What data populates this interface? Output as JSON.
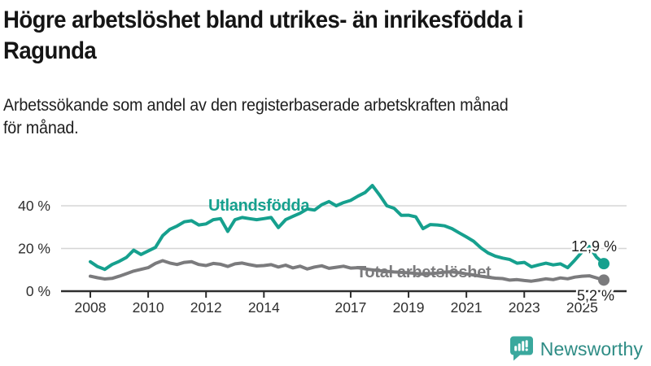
{
  "header": {
    "title": "Högre arbetslöshet bland utrikes- än inrikesfödda i Ragunda",
    "title_lines": [
      "Högre arbetslöshet bland utrikes- än inrikesfödda i",
      "Ragunda"
    ],
    "subtitle_lines": [
      "Arbetssökande som andel av den registerbaserade arbetskraften månad",
      "för månad."
    ]
  },
  "chart_data": {
    "type": "line",
    "title": "Högre arbetslöshet bland utrikes- än inrikesfödda i Ragunda",
    "subtitle": "Arbetssökande som andel av den registerbaserade arbetskraften månad för månad.",
    "x_unit": "year (monthly series)",
    "xlim": [
      2008,
      2025.75
    ],
    "ylim": [
      0,
      52
    ],
    "grid": "horizontal",
    "legend_position": "inline-labels",
    "yticks": [
      {
        "value": 0,
        "label": "0 %"
      },
      {
        "value": 20,
        "label": "20 %"
      },
      {
        "value": 40,
        "label": "40 %"
      }
    ],
    "xticks": [
      {
        "value": 2008,
        "label": "2008"
      },
      {
        "value": 2010,
        "label": "2010"
      },
      {
        "value": 2012,
        "label": "2012"
      },
      {
        "value": 2014,
        "label": "2014"
      },
      {
        "value": 2017,
        "label": "2017"
      },
      {
        "value": 2019,
        "label": "2019"
      },
      {
        "value": 2021,
        "label": "2021"
      },
      {
        "value": 2023,
        "label": "2023"
      },
      {
        "value": 2025,
        "label": "2025"
      }
    ],
    "series": [
      {
        "name": "Utlandsfödda",
        "color": "#16a08e",
        "end_label": "12,9 %",
        "end_value": 12.9,
        "points": [
          [
            2008.0,
            13.8
          ],
          [
            2008.25,
            11.5
          ],
          [
            2008.5,
            10.2
          ],
          [
            2008.75,
            12.5
          ],
          [
            2009.0,
            14.0
          ],
          [
            2009.25,
            15.8
          ],
          [
            2009.5,
            19.2
          ],
          [
            2009.75,
            17.2
          ],
          [
            2010.0,
            18.8
          ],
          [
            2010.25,
            20.5
          ],
          [
            2010.5,
            26.0
          ],
          [
            2010.75,
            29.0
          ],
          [
            2011.0,
            30.5
          ],
          [
            2011.25,
            32.5
          ],
          [
            2011.5,
            33.0
          ],
          [
            2011.75,
            31.0
          ],
          [
            2012.0,
            31.5
          ],
          [
            2012.25,
            33.5
          ],
          [
            2012.5,
            34.0
          ],
          [
            2012.75,
            28.0
          ],
          [
            2013.0,
            33.5
          ],
          [
            2013.25,
            34.5
          ],
          [
            2013.5,
            34.0
          ],
          [
            2013.75,
            33.5
          ],
          [
            2014.0,
            34.0
          ],
          [
            2014.25,
            34.5
          ],
          [
            2014.5,
            29.8
          ],
          [
            2014.75,
            33.5
          ],
          [
            2015.0,
            35.0
          ],
          [
            2015.25,
            36.5
          ],
          [
            2015.5,
            38.5
          ],
          [
            2015.75,
            38.0
          ],
          [
            2016.0,
            40.5
          ],
          [
            2016.25,
            42.0
          ],
          [
            2016.5,
            40.0
          ],
          [
            2016.75,
            41.5
          ],
          [
            2017.0,
            42.5
          ],
          [
            2017.25,
            44.5
          ],
          [
            2017.5,
            46.2
          ],
          [
            2017.75,
            49.5
          ],
          [
            2018.0,
            45.0
          ],
          [
            2018.25,
            40.0
          ],
          [
            2018.5,
            38.8
          ],
          [
            2018.75,
            35.5
          ],
          [
            2019.0,
            35.6
          ],
          [
            2019.25,
            34.8
          ],
          [
            2019.5,
            29.3
          ],
          [
            2019.75,
            31.2
          ],
          [
            2020.0,
            31.0
          ],
          [
            2020.25,
            30.6
          ],
          [
            2020.5,
            29.3
          ],
          [
            2020.75,
            27.3
          ],
          [
            2021.0,
            25.4
          ],
          [
            2021.25,
            23.4
          ],
          [
            2021.5,
            20.3
          ],
          [
            2021.75,
            17.9
          ],
          [
            2022.0,
            16.4
          ],
          [
            2022.25,
            15.5
          ],
          [
            2022.5,
            14.8
          ],
          [
            2022.75,
            13.1
          ],
          [
            2023.0,
            13.5
          ],
          [
            2023.25,
            11.4
          ],
          [
            2023.5,
            12.3
          ],
          [
            2023.75,
            13.1
          ],
          [
            2024.0,
            12.3
          ],
          [
            2024.25,
            12.8
          ],
          [
            2024.5,
            11.0
          ],
          [
            2024.75,
            14.6
          ],
          [
            2025.0,
            18.4
          ],
          [
            2025.25,
            20.9
          ],
          [
            2025.5,
            15.9
          ],
          [
            2025.75,
            12.9
          ]
        ]
      },
      {
        "name": "Total arbetslöshet",
        "color": "#7b7b7d",
        "end_label": "5,2 %",
        "end_value": 5.2,
        "points": [
          [
            2008.0,
            7.0
          ],
          [
            2008.25,
            6.3
          ],
          [
            2008.5,
            5.7
          ],
          [
            2008.75,
            6.0
          ],
          [
            2009.0,
            7.0
          ],
          [
            2009.25,
            8.2
          ],
          [
            2009.5,
            9.4
          ],
          [
            2009.75,
            10.2
          ],
          [
            2010.0,
            11.0
          ],
          [
            2010.25,
            13.0
          ],
          [
            2010.5,
            14.3
          ],
          [
            2010.75,
            13.2
          ],
          [
            2011.0,
            12.5
          ],
          [
            2011.25,
            13.5
          ],
          [
            2011.5,
            13.8
          ],
          [
            2011.75,
            12.5
          ],
          [
            2012.0,
            12.0
          ],
          [
            2012.25,
            13.0
          ],
          [
            2012.5,
            12.6
          ],
          [
            2012.75,
            11.6
          ],
          [
            2013.0,
            12.8
          ],
          [
            2013.25,
            13.2
          ],
          [
            2013.5,
            12.4
          ],
          [
            2013.75,
            11.8
          ],
          [
            2014.0,
            12.0
          ],
          [
            2014.25,
            12.4
          ],
          [
            2014.5,
            11.3
          ],
          [
            2014.75,
            12.2
          ],
          [
            2015.0,
            10.9
          ],
          [
            2015.25,
            11.7
          ],
          [
            2015.5,
            10.4
          ],
          [
            2015.75,
            11.3
          ],
          [
            2016.0,
            11.9
          ],
          [
            2016.25,
            10.7
          ],
          [
            2016.5,
            11.2
          ],
          [
            2016.75,
            11.7
          ],
          [
            2017.0,
            10.8
          ],
          [
            2017.25,
            11.0
          ],
          [
            2017.5,
            10.4
          ],
          [
            2017.75,
            10.0
          ],
          [
            2018.0,
            9.6
          ],
          [
            2018.25,
            9.3
          ],
          [
            2018.5,
            9.0
          ],
          [
            2018.75,
            8.8
          ],
          [
            2019.0,
            8.6
          ],
          [
            2019.25,
            8.3
          ],
          [
            2019.5,
            8.0
          ],
          [
            2019.75,
            8.2
          ],
          [
            2020.0,
            8.5
          ],
          [
            2020.25,
            8.9
          ],
          [
            2020.5,
            9.1
          ],
          [
            2020.75,
            8.6
          ],
          [
            2021.0,
            8.1
          ],
          [
            2021.25,
            7.6
          ],
          [
            2021.5,
            7.0
          ],
          [
            2021.75,
            6.5
          ],
          [
            2022.0,
            6.1
          ],
          [
            2022.25,
            5.9
          ],
          [
            2022.5,
            5.2
          ],
          [
            2022.75,
            5.4
          ],
          [
            2023.0,
            5.0
          ],
          [
            2023.25,
            4.7
          ],
          [
            2023.5,
            5.2
          ],
          [
            2023.75,
            5.8
          ],
          [
            2024.0,
            5.4
          ],
          [
            2024.25,
            6.2
          ],
          [
            2024.5,
            5.8
          ],
          [
            2024.75,
            6.6
          ],
          [
            2025.0,
            7.0
          ],
          [
            2025.25,
            7.2
          ],
          [
            2025.5,
            6.2
          ],
          [
            2025.75,
            5.2
          ]
        ]
      }
    ]
  },
  "logo": {
    "text": "Newsworthy",
    "icon": "newsworthy-barchart-speech-bubble",
    "icon_color": "#3aa89d",
    "text_color": "#2e8c85"
  },
  "colors": {
    "accent_teal": "#16a08e",
    "series_gray": "#7b7b7d",
    "gridline": "#d5d5d5",
    "axis": "#2e2e2e",
    "text_dark": "#1f1f1f"
  }
}
